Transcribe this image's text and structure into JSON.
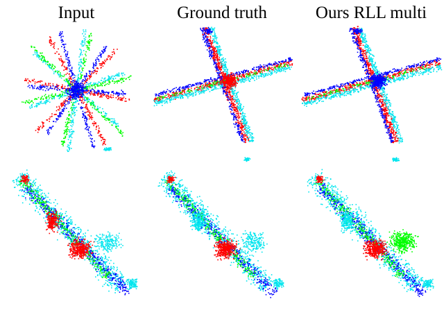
{
  "figure": {
    "columns": [
      {
        "key": "input",
        "title": "Input"
      },
      {
        "key": "ground_truth",
        "title": "Ground truth"
      },
      {
        "key": "ours_rll_multi",
        "title": "Ours RLL multi"
      }
    ],
    "point_colors": [
      "#ff0000",
      "#00e5ee",
      "#0000ff",
      "#00ff00"
    ]
  }
}
